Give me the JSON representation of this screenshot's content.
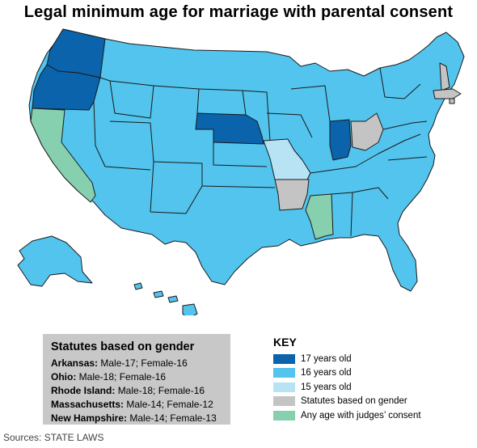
{
  "title": "Legal minimum age for marriage with parental consent",
  "colors": {
    "age17": "#0a63ab",
    "age16": "#52c4ed",
    "age15": "#b8e3f5",
    "gender": "#c4c4c4",
    "judges": "#86d0b0"
  },
  "gender_box": {
    "heading": "Statutes based on gender",
    "rows": [
      {
        "state": "Arkansas:",
        "detail": "Male-17; Female-16"
      },
      {
        "state": "Ohio:",
        "detail": "Male-18; Female-16"
      },
      {
        "state": "Rhode Island:",
        "detail": "Male-18; Female-16"
      },
      {
        "state": "Massachusetts:",
        "detail": "Male-14; Female-12"
      },
      {
        "state": "New Hampshire:",
        "detail": "Male-14; Female-13"
      }
    ]
  },
  "key": {
    "heading": "KEY",
    "items": [
      {
        "label": "17 years old",
        "color": "#0a63ab"
      },
      {
        "label": "16 years old",
        "color": "#52c4ed"
      },
      {
        "label": "15 years old",
        "color": "#b8e3f5"
      },
      {
        "label": "Statutes based on gender",
        "color": "#c4c4c4"
      },
      {
        "label": "Any age with judges’ consent",
        "color": "#86d0b0"
      }
    ]
  },
  "sources": "Sources: STATE LAWS",
  "states": {
    "washington": "17 years old",
    "oregon": "17 years old",
    "nebraska": "17 years old",
    "indiana": "17 years old",
    "missouri": "15 years old",
    "arkansas": "Statutes based on gender",
    "ohio": "Statutes based on gender",
    "massachusetts": "Statutes based on gender",
    "new_hampshire": "Statutes based on gender",
    "rhode_island": "Statutes based on gender",
    "california": "Any age with judges’ consent",
    "mississippi": "Any age with judges’ consent"
  }
}
